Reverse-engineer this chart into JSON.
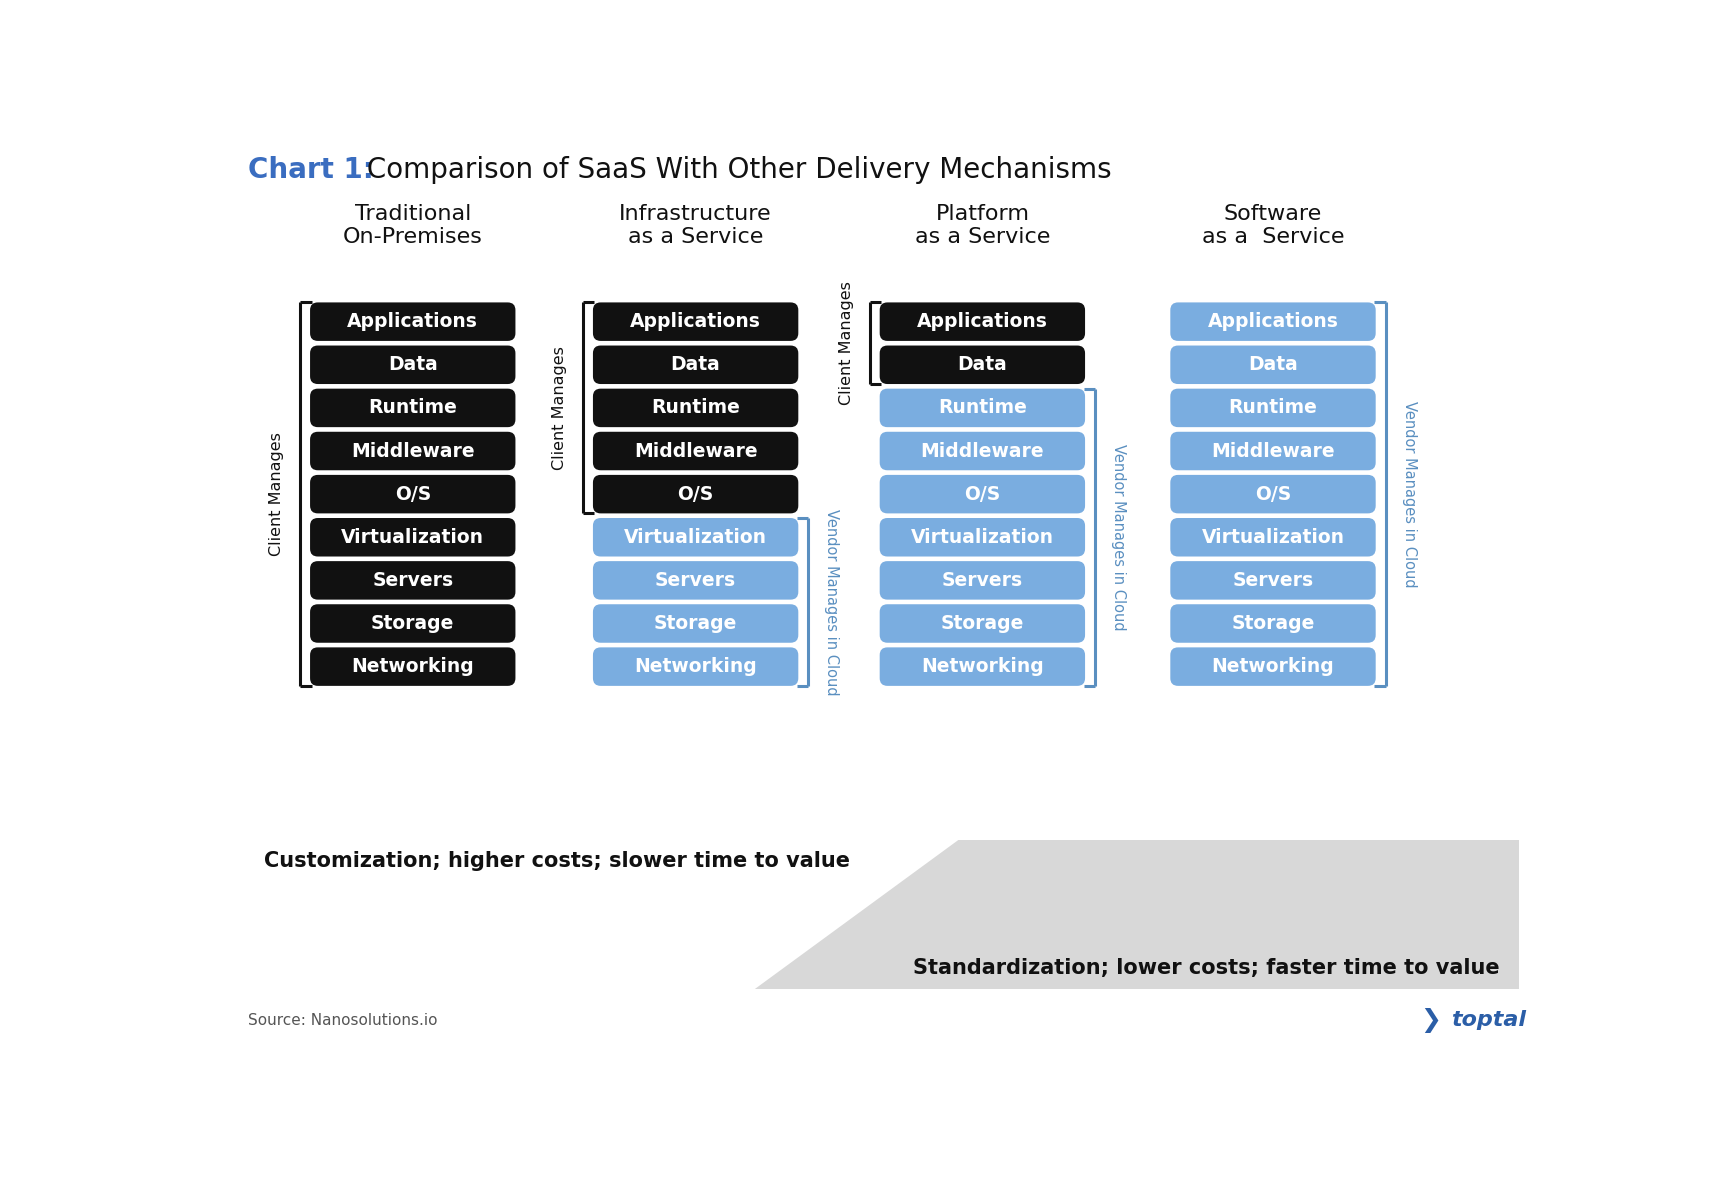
{
  "title_blue": "Chart 1:",
  "title_black": " Comparison of SaaS With Other Delivery Mechanisms",
  "title_fontsize": 20,
  "columns": [
    {
      "header": "Traditional\nOn-Premises",
      "items": [
        "Applications",
        "Data",
        "Runtime",
        "Middleware",
        "O/S",
        "Virtualization",
        "Servers",
        "Storage",
        "Networking"
      ],
      "black_count": 9,
      "client_label": "Client Manages",
      "vendor_label": null
    },
    {
      "header": "Infrastructure\nas a Service",
      "items": [
        "Applications",
        "Data",
        "Runtime",
        "Middleware",
        "O/S",
        "Virtualization",
        "Servers",
        "Storage",
        "Networking"
      ],
      "black_count": 5,
      "client_label": "Client Manages",
      "vendor_label": "Vendor Manages in Cloud"
    },
    {
      "header": "Platform\nas a Service",
      "items": [
        "Applications",
        "Data",
        "Runtime",
        "Middleware",
        "O/S",
        "Virtualization",
        "Servers",
        "Storage",
        "Networking"
      ],
      "black_count": 2,
      "client_label": "Client Manages",
      "vendor_label": "Vendor Manages in Cloud"
    },
    {
      "header": "Software\nas a  Service",
      "items": [
        "Applications",
        "Data",
        "Runtime",
        "Middleware",
        "O/S",
        "Virtualization",
        "Servers",
        "Storage",
        "Networking"
      ],
      "black_count": 0,
      "client_label": null,
      "vendor_label": "Vendor Manages in Cloud"
    }
  ],
  "black_color": "#111111",
  "blue_color": "#7aade0",
  "bracket_color": "#111111",
  "blue_bracket_color": "#5a8fc0",
  "text_white": "#ffffff",
  "text_black": "#111111",
  "bg_color": "#ffffff",
  "customization_text": "Customization; higher costs; slower time to value",
  "standardization_text": "Standardization; lower costs; faster time to value",
  "source_text": "Source: Nanosolutions.io",
  "chart1_blue": "#3a6dc0",
  "toptal_blue": "#2b5ea7"
}
